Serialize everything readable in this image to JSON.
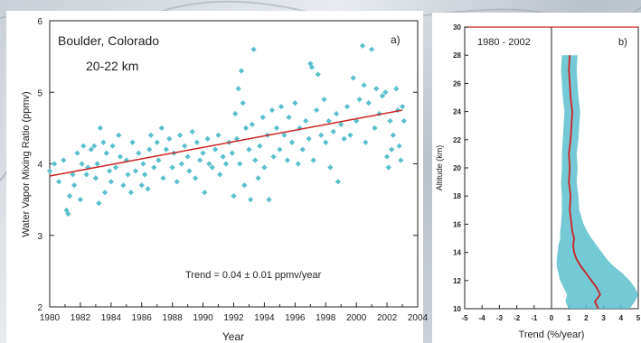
{
  "chart_data": [
    {
      "type": "scatter",
      "panel_label": "a)",
      "location": "Boulder, Colorado",
      "altitude_range": "20-22 km",
      "xlabel": "Year",
      "ylabel": "Water Vapor Mixing Ratio (ppmv)",
      "xlim": [
        1980,
        2004
      ],
      "ylim": [
        2,
        6
      ],
      "xticks": [
        "1980",
        "1982",
        "1984",
        "1986",
        "1988",
        "1990",
        "1992",
        "1994",
        "1996",
        "1998",
        "2000",
        "2002",
        "2004"
      ],
      "yticks": [
        "2",
        "3",
        "4",
        "5",
        "6"
      ],
      "annotation": "Trend = 0.04 ± 0.01 ppmv/year",
      "trend_line": {
        "x": [
          1980,
          2003
        ],
        "y": [
          3.83,
          4.75
        ]
      },
      "points": [
        [
          1980.0,
          3.9
        ],
        [
          1980.3,
          4.0
        ],
        [
          1980.6,
          3.75
        ],
        [
          1980.9,
          4.05
        ],
        [
          1981.1,
          3.35
        ],
        [
          1981.2,
          3.3
        ],
        [
          1981.3,
          3.55
        ],
        [
          1981.5,
          3.85
        ],
        [
          1981.6,
          3.7
        ],
        [
          1981.8,
          4.15
        ],
        [
          1982.0,
          3.5
        ],
        [
          1982.1,
          4.0
        ],
        [
          1982.2,
          4.25
        ],
        [
          1982.4,
          3.85
        ],
        [
          1982.5,
          3.95
        ],
        [
          1982.7,
          4.2
        ],
        [
          1982.9,
          4.25
        ],
        [
          1983.0,
          3.8
        ],
        [
          1983.1,
          4.0
        ],
        [
          1983.2,
          3.45
        ],
        [
          1983.3,
          4.5
        ],
        [
          1983.5,
          4.3
        ],
        [
          1983.6,
          3.6
        ],
        [
          1983.7,
          4.15
        ],
        [
          1983.9,
          3.9
        ],
        [
          1984.0,
          3.75
        ],
        [
          1984.1,
          4.25
        ],
        [
          1984.3,
          3.95
        ],
        [
          1984.5,
          4.4
        ],
        [
          1984.6,
          4.1
        ],
        [
          1984.8,
          3.7
        ],
        [
          1985.0,
          4.05
        ],
        [
          1985.1,
          3.85
        ],
        [
          1985.3,
          3.6
        ],
        [
          1985.4,
          4.3
        ],
        [
          1985.6,
          3.9
        ],
        [
          1985.8,
          4.15
        ],
        [
          1986.0,
          3.7
        ],
        [
          1986.1,
          4.0
        ],
        [
          1986.2,
          3.85
        ],
        [
          1986.4,
          3.65
        ],
        [
          1986.5,
          4.2
        ],
        [
          1986.6,
          4.4
        ],
        [
          1986.8,
          3.95
        ],
        [
          1987.0,
          4.3
        ],
        [
          1987.1,
          4.05
        ],
        [
          1987.3,
          4.5
        ],
        [
          1987.4,
          3.8
        ],
        [
          1987.6,
          4.2
        ],
        [
          1987.8,
          4.35
        ],
        [
          1988.0,
          3.95
        ],
        [
          1988.1,
          4.15
        ],
        [
          1988.3,
          3.75
        ],
        [
          1988.5,
          4.4
        ],
        [
          1988.6,
          4.0
        ],
        [
          1988.8,
          4.25
        ],
        [
          1989.0,
          4.1
        ],
        [
          1989.1,
          3.9
        ],
        [
          1989.3,
          4.45
        ],
        [
          1989.5,
          3.8
        ],
        [
          1989.6,
          4.3
        ],
        [
          1989.8,
          4.05
        ],
        [
          1990.0,
          4.15
        ],
        [
          1990.1,
          3.6
        ],
        [
          1990.3,
          4.35
        ],
        [
          1990.4,
          4.0
        ],
        [
          1990.6,
          3.95
        ],
        [
          1990.8,
          4.2
        ],
        [
          1991.0,
          4.4
        ],
        [
          1991.1,
          3.85
        ],
        [
          1991.3,
          4.1
        ],
        [
          1991.5,
          4.0
        ],
        [
          1991.7,
          4.3
        ],
        [
          1991.9,
          4.15
        ],
        [
          1992.0,
          3.55
        ],
        [
          1992.1,
          4.7
        ],
        [
          1992.2,
          4.35
        ],
        [
          1992.3,
          5.05
        ],
        [
          1992.4,
          4.0
        ],
        [
          1992.5,
          5.3
        ],
        [
          1992.6,
          4.85
        ],
        [
          1992.7,
          3.7
        ],
        [
          1992.8,
          4.5
        ],
        [
          1993.0,
          4.2
        ],
        [
          1993.1,
          3.5
        ],
        [
          1993.2,
          4.55
        ],
        [
          1993.3,
          5.6
        ],
        [
          1993.4,
          4.05
        ],
        [
          1993.6,
          3.8
        ],
        [
          1993.7,
          4.25
        ],
        [
          1993.9,
          4.65
        ],
        [
          1994.0,
          3.95
        ],
        [
          1994.2,
          4.4
        ],
        [
          1994.3,
          3.5
        ],
        [
          1994.5,
          4.75
        ],
        [
          1994.6,
          4.1
        ],
        [
          1994.8,
          4.5
        ],
        [
          1995.0,
          4.2
        ],
        [
          1995.1,
          4.8
        ],
        [
          1995.3,
          4.4
        ],
        [
          1995.5,
          4.05
        ],
        [
          1995.6,
          4.65
        ],
        [
          1995.8,
          4.3
        ],
        [
          1996.0,
          4.85
        ],
        [
          1996.2,
          4.0
        ],
        [
          1996.3,
          4.5
        ],
        [
          1996.5,
          4.2
        ],
        [
          1996.7,
          4.6
        ],
        [
          1996.9,
          4.35
        ],
        [
          1997.0,
          5.4
        ],
        [
          1997.1,
          5.35
        ],
        [
          1997.2,
          4.05
        ],
        [
          1997.4,
          4.75
        ],
        [
          1997.5,
          5.25
        ],
        [
          1997.7,
          4.4
        ],
        [
          1997.9,
          4.9
        ],
        [
          1998.0,
          4.3
        ],
        [
          1998.2,
          4.6
        ],
        [
          1998.3,
          3.95
        ],
        [
          1998.5,
          4.45
        ],
        [
          1998.7,
          4.7
        ],
        [
          1998.8,
          3.75
        ],
        [
          1999.0,
          4.55
        ],
        [
          1999.2,
          4.35
        ],
        [
          1999.4,
          4.8
        ],
        [
          1999.6,
          4.4
        ],
        [
          1999.8,
          5.2
        ],
        [
          2000.0,
          4.6
        ],
        [
          2000.2,
          4.9
        ],
        [
          2000.4,
          5.65
        ],
        [
          2000.5,
          5.1
        ],
        [
          2000.6,
          4.3
        ],
        [
          2000.8,
          4.85
        ],
        [
          2001.0,
          5.6
        ],
        [
          2001.2,
          4.5
        ],
        [
          2001.3,
          5.05
        ],
        [
          2001.5,
          4.7
        ],
        [
          2001.7,
          4.95
        ],
        [
          2001.9,
          5.0
        ],
        [
          2002.0,
          4.1
        ],
        [
          2002.1,
          3.95
        ],
        [
          2002.2,
          4.6
        ],
        [
          2002.3,
          4.2
        ],
        [
          2002.4,
          4.4
        ],
        [
          2002.6,
          5.05
        ],
        [
          2002.7,
          4.75
        ],
        [
          2002.8,
          4.25
        ],
        [
          2002.9,
          4.05
        ],
        [
          2003.0,
          4.8
        ],
        [
          2003.1,
          4.6
        ]
      ]
    },
    {
      "type": "line",
      "panel_label": "b)",
      "period": "1980 - 2002",
      "xlabel": "Trend (%/year)",
      "ylabel": "Altitude (km)",
      "xlim": [
        -5,
        5
      ],
      "ylim": [
        10,
        30
      ],
      "xticks": [
        "-5",
        "-4",
        "-3",
        "-2",
        "-1",
        "0",
        "1",
        "2",
        "3",
        "4",
        "5"
      ],
      "yticks": [
        "10",
        "12",
        "14",
        "16",
        "18",
        "20",
        "22",
        "24",
        "26",
        "28",
        "30"
      ],
      "profile": {
        "altitude": [
          10.0,
          10.5,
          11.0,
          11.5,
          12.0,
          12.5,
          13.0,
          13.5,
          14.0,
          14.5,
          15.0,
          15.5,
          16.0,
          17.0,
          18.0,
          19.0,
          20.0,
          21.0,
          22.0,
          23.0,
          24.0,
          25.0,
          26.0,
          27.0,
          28.0
        ],
        "trend": [
          2.7,
          2.5,
          2.8,
          2.6,
          2.3,
          2.0,
          1.7,
          1.45,
          1.3,
          1.25,
          1.3,
          1.2,
          1.15,
          1.05,
          1.1,
          1.0,
          1.05,
          1.0,
          1.1,
          1.15,
          1.2,
          1.1,
          1.05,
          1.0,
          1.05
        ],
        "lower": [
          1.0,
          0.8,
          0.9,
          0.7,
          0.5,
          0.4,
          0.3,
          0.3,
          0.35,
          0.4,
          0.5,
          0.5,
          0.55,
          0.6,
          0.6,
          0.55,
          0.6,
          0.6,
          0.65,
          0.7,
          0.75,
          0.65,
          0.6,
          0.55,
          0.6
        ],
        "upper": [
          4.5,
          4.8,
          5.0,
          4.8,
          4.5,
          4.1,
          3.6,
          3.2,
          2.9,
          2.6,
          2.3,
          2.05,
          1.85,
          1.6,
          1.55,
          1.45,
          1.5,
          1.45,
          1.55,
          1.6,
          1.65,
          1.55,
          1.5,
          1.45,
          1.5
        ]
      }
    }
  ]
}
